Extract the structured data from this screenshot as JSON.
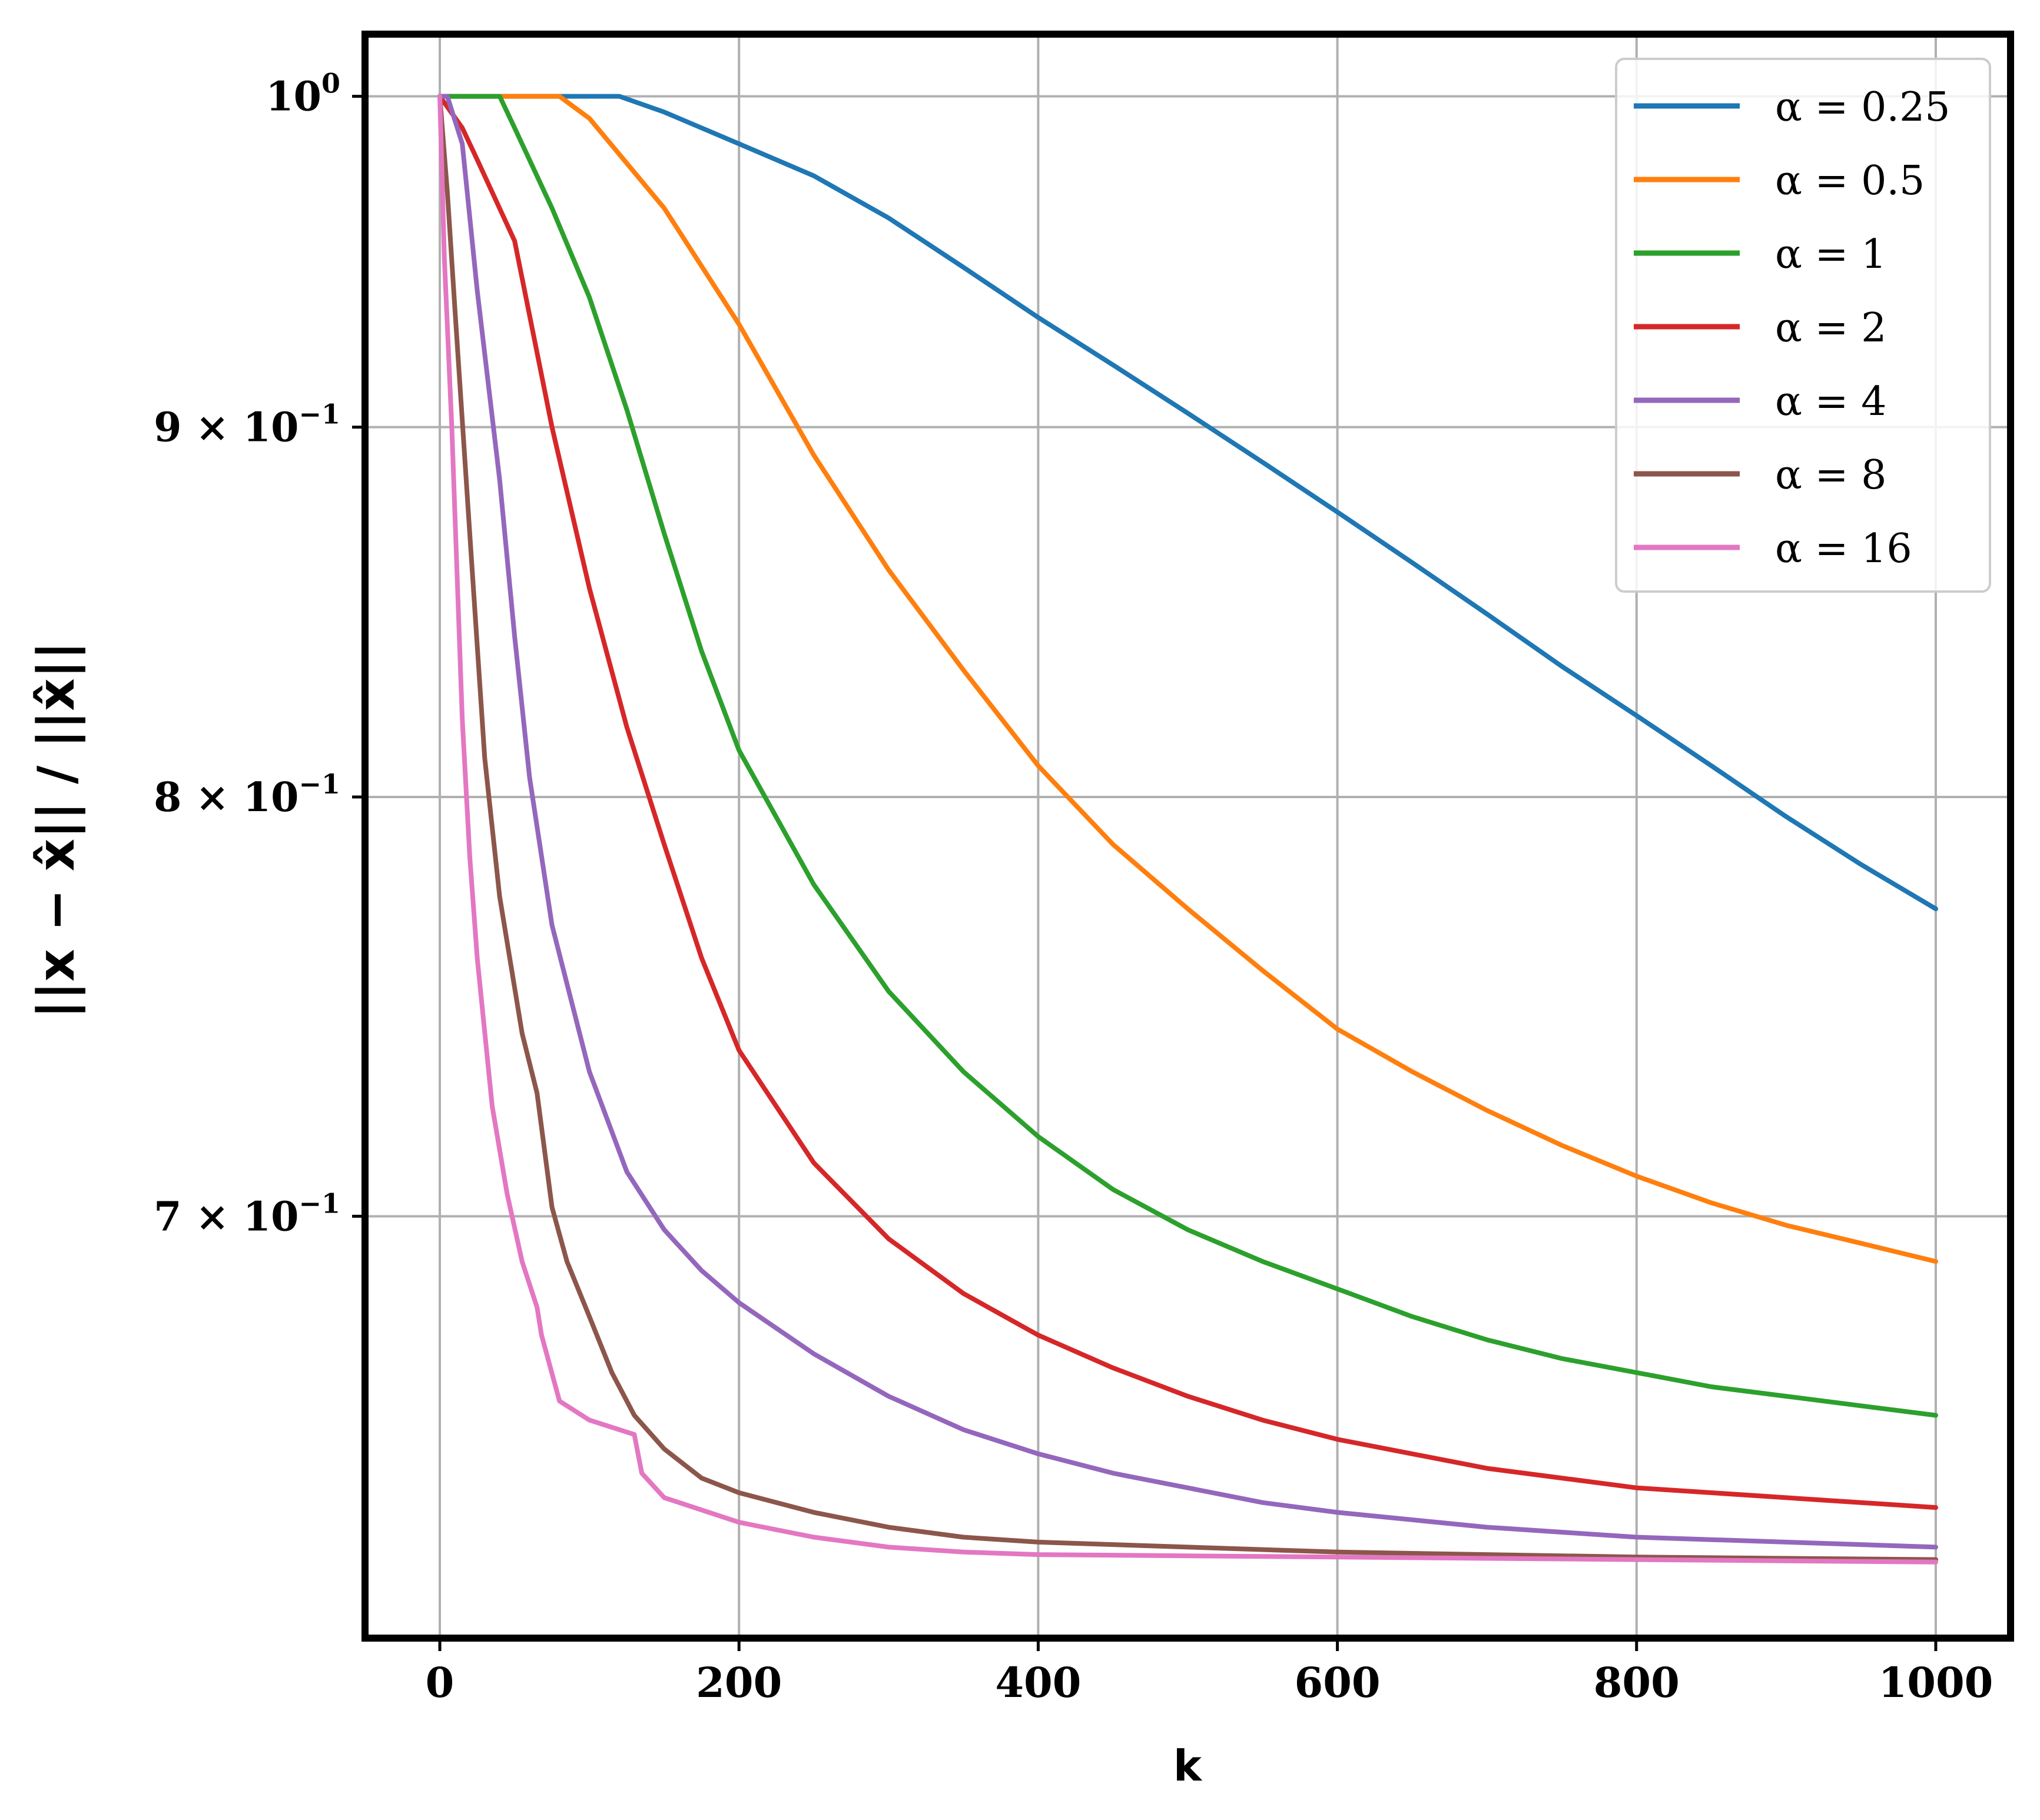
{
  "chart_data": {
    "type": "line",
    "title": "",
    "xlabel": "k",
    "ylabel": "||x − x̂|| / ||x̂||",
    "xlim": [
      -50,
      1050
    ],
    "ylim": [
      0.612,
      1.02
    ],
    "yscale": "log",
    "grid": true,
    "legend_position": "top-right",
    "x_ticks": [
      {
        "value": 0,
        "label": "0"
      },
      {
        "value": 200,
        "label": "200"
      },
      {
        "value": 400,
        "label": "400"
      },
      {
        "value": 600,
        "label": "600"
      },
      {
        "value": 800,
        "label": "800"
      },
      {
        "value": 1000,
        "label": "1000"
      }
    ],
    "y_ticks": [
      {
        "value": 1.0,
        "base": "10",
        "exp": "0"
      },
      {
        "value": 0.9,
        "base": "9 × 10",
        "exp": "−1"
      },
      {
        "value": 0.8,
        "base": "8 × 10",
        "exp": "−1"
      },
      {
        "value": 0.7,
        "base": "7 × 10",
        "exp": "−1"
      }
    ],
    "series": [
      {
        "name": "α = 0.25",
        "color": "#1f77b4",
        "x": [
          0,
          100,
          120,
          150,
          200,
          250,
          300,
          350,
          400,
          450,
          500,
          550,
          600,
          650,
          700,
          750,
          800,
          850,
          900,
          950,
          1000
        ],
        "y": [
          1.0,
          1.0,
          1.0,
          0.995,
          0.985,
          0.975,
          0.962,
          0.947,
          0.932,
          0.918,
          0.904,
          0.89,
          0.876,
          0.862,
          0.848,
          0.834,
          0.821,
          0.808,
          0.795,
          0.783,
          0.772
        ]
      },
      {
        "name": "α = 0.5",
        "color": "#ff7f0e",
        "x": [
          0,
          70,
          80,
          100,
          150,
          200,
          250,
          300,
          350,
          400,
          450,
          500,
          550,
          600,
          650,
          700,
          750,
          800,
          850,
          900,
          950,
          1000
        ],
        "y": [
          1.0,
          1.0,
          1.0,
          0.993,
          0.965,
          0.93,
          0.892,
          0.86,
          0.833,
          0.808,
          0.788,
          0.772,
          0.757,
          0.743,
          0.733,
          0.724,
          0.716,
          0.709,
          0.703,
          0.698,
          0.694,
          0.69
        ]
      },
      {
        "name": "α = 1",
        "color": "#2ca02c",
        "x": [
          0,
          30,
          40,
          50,
          75,
          100,
          125,
          150,
          175,
          200,
          250,
          300,
          350,
          400,
          450,
          500,
          550,
          600,
          650,
          700,
          750,
          800,
          850,
          900,
          950,
          1000
        ],
        "y": [
          1.0,
          1.0,
          1.0,
          0.99,
          0.965,
          0.938,
          0.905,
          0.87,
          0.838,
          0.812,
          0.778,
          0.752,
          0.733,
          0.718,
          0.706,
          0.697,
          0.69,
          0.684,
          0.678,
          0.673,
          0.669,
          0.666,
          0.663,
          0.661,
          0.659,
          0.657
        ]
      },
      {
        "name": "α = 2",
        "color": "#d62728",
        "x": [
          0,
          15,
          25,
          50,
          75,
          100,
          125,
          150,
          175,
          200,
          250,
          300,
          350,
          400,
          450,
          500,
          550,
          600,
          650,
          700,
          750,
          800,
          850,
          900,
          950,
          1000
        ],
        "y": [
          1.0,
          0.99,
          0.98,
          0.955,
          0.9,
          0.855,
          0.818,
          0.788,
          0.76,
          0.738,
          0.712,
          0.695,
          0.683,
          0.674,
          0.667,
          0.661,
          0.656,
          0.652,
          0.649,
          0.646,
          0.644,
          0.642,
          0.641,
          0.64,
          0.639,
          0.638
        ]
      },
      {
        "name": "α = 4",
        "color": "#9467bd",
        "x": [
          0,
          5,
          15,
          25,
          40,
          50,
          60,
          75,
          100,
          125,
          150,
          175,
          200,
          250,
          300,
          350,
          400,
          450,
          500,
          550,
          600,
          700,
          800,
          900,
          1000
        ],
        "y": [
          1.0,
          1.0,
          0.985,
          0.94,
          0.885,
          0.842,
          0.805,
          0.768,
          0.733,
          0.71,
          0.697,
          0.688,
          0.681,
          0.67,
          0.661,
          0.654,
          0.649,
          0.645,
          0.642,
          0.639,
          0.637,
          0.634,
          0.632,
          0.631,
          0.63
        ]
      },
      {
        "name": "α = 8",
        "color": "#8c564b",
        "x": [
          0,
          5,
          10,
          20,
          30,
          40,
          55,
          65,
          75,
          85,
          100,
          115,
          130,
          150,
          175,
          200,
          250,
          300,
          350,
          400,
          500,
          600,
          700,
          800,
          1000
        ],
        "y": [
          1.0,
          0.97,
          0.935,
          0.87,
          0.81,
          0.775,
          0.742,
          0.728,
          0.702,
          0.69,
          0.678,
          0.666,
          0.657,
          0.65,
          0.644,
          0.641,
          0.637,
          0.634,
          0.632,
          0.631,
          0.63,
          0.629,
          0.6285,
          0.628,
          0.6275
        ]
      },
      {
        "name": "α = 16",
        "color": "#e377c2",
        "x": [
          0,
          3,
          8,
          15,
          20,
          25,
          35,
          45,
          55,
          65,
          68,
          80,
          100,
          130,
          135,
          150,
          200,
          250,
          300,
          350,
          400,
          600,
          800,
          1000
        ],
        "y": [
          1.0,
          0.95,
          0.9,
          0.82,
          0.785,
          0.76,
          0.725,
          0.705,
          0.69,
          0.68,
          0.674,
          0.66,
          0.656,
          0.653,
          0.645,
          0.64,
          0.635,
          0.632,
          0.63,
          0.629,
          0.6285,
          0.628,
          0.6275,
          0.627
        ]
      }
    ]
  }
}
